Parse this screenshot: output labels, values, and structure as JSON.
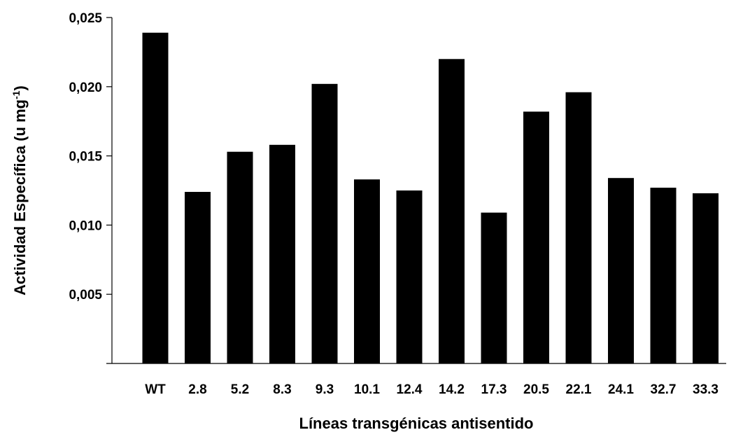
{
  "chart_data": {
    "type": "bar",
    "title": "",
    "xlabel": "Líneas transgénicas antisentido",
    "ylabel_text": "Actividad Específica (u mg",
    "ylabel_superscript": "-1",
    "ylabel_close": ")",
    "categories": [
      "WT",
      "2.8",
      "5.2",
      "8.3",
      "9.3",
      "10.1",
      "12.4",
      "14.2",
      "17.3",
      "20.5",
      "22.1",
      "24.1",
      "32.7",
      "33.3"
    ],
    "values": [
      0.0239,
      0.0124,
      0.0153,
      0.0158,
      0.0202,
      0.0133,
      0.0125,
      0.022,
      0.0109,
      0.0182,
      0.0196,
      0.0134,
      0.0127,
      0.0123
    ],
    "ylim": [
      0,
      0.025
    ],
    "yticks": [
      0.005,
      0.01,
      0.015,
      0.02,
      0.025
    ],
    "ytick_labels": [
      "0,005",
      "0,010",
      "0,015",
      "0,020",
      "0,025"
    ],
    "bar_color": "#000000",
    "grid": false,
    "legend": "none"
  }
}
